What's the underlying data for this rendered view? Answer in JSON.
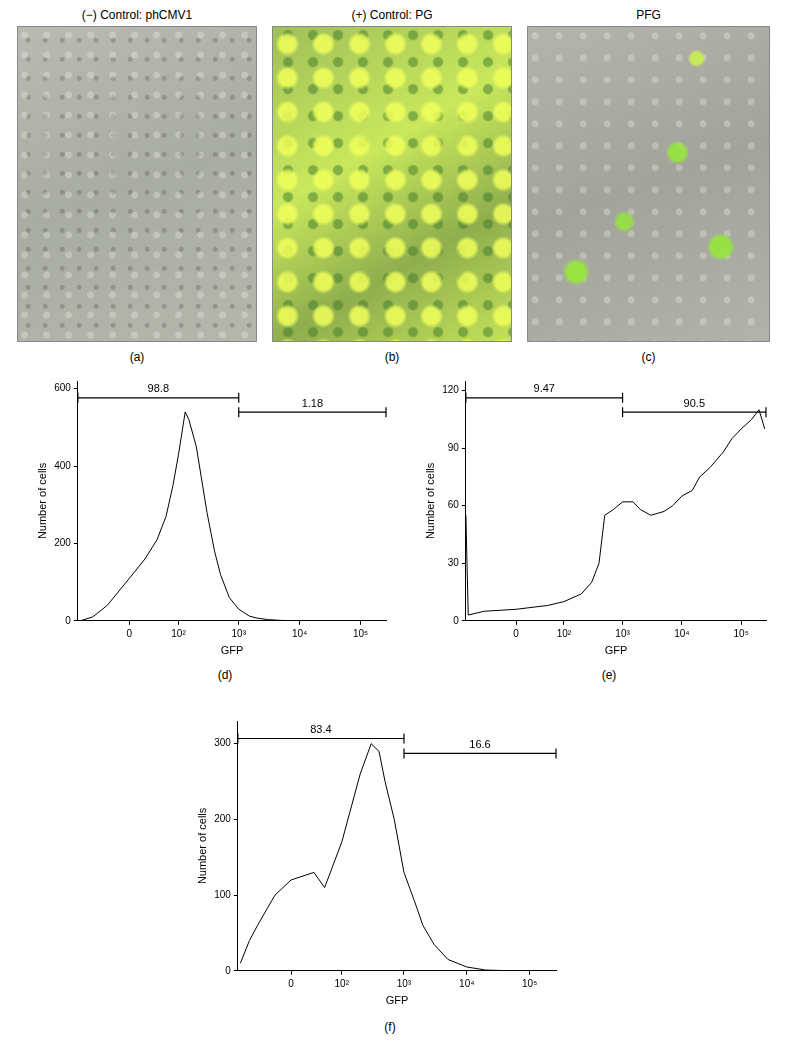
{
  "images": [
    {
      "title": "(−) Control: phCMV1",
      "label": "(a)"
    },
    {
      "title": "(+) Control: PG",
      "label": "(b)"
    },
    {
      "title": "PFG",
      "label": "(c)"
    }
  ],
  "chart_data": [
    {
      "type": "line",
      "label": "(d)",
      "xlabel": "GFP",
      "ylabel": "Number of cells",
      "color": "#000000",
      "x": [
        -100,
        -60,
        -30,
        0,
        20,
        40,
        60,
        80,
        100,
        130,
        150,
        200,
        300,
        400,
        500,
        700,
        1000,
        1500,
        2000,
        3000,
        5000,
        10000,
        50000,
        250000
      ],
      "values": [
        0,
        10,
        40,
        110,
        160,
        210,
        270,
        350,
        430,
        540,
        520,
        450,
        280,
        180,
        120,
        60,
        30,
        12,
        7,
        3,
        1,
        0,
        0,
        0
      ],
      "xlim": [
        -110,
        262144
      ],
      "xticks": [
        0,
        {
          "value": 100,
          "label": "10²"
        },
        {
          "value": 1000,
          "label": "10³"
        },
        {
          "value": 10000,
          "label": "10⁴"
        },
        {
          "value": 100000,
          "label": "10⁵"
        }
      ],
      "ylim": [
        0,
        620
      ],
      "yticks": [
        0,
        200,
        400,
        600
      ],
      "gates": [
        {
          "range": [
            -110,
            1000
          ],
          "value": 98.8
        },
        {
          "range": [
            1000,
            262144
          ],
          "value": 1.18
        }
      ]
    },
    {
      "type": "line",
      "label": "(e)",
      "xlabel": "GFP",
      "ylabel": "Number of cells",
      "color": "#000000",
      "x": [
        -110,
        -100,
        -50,
        0,
        50,
        100,
        200,
        300,
        400,
        500,
        700,
        1000,
        1500,
        2000,
        3000,
        5000,
        7000,
        10000,
        15000,
        20000,
        30000,
        50000,
        70000,
        100000,
        150000,
        200000,
        250000
      ],
      "values": [
        55,
        3,
        5,
        6,
        8,
        10,
        14,
        20,
        30,
        55,
        58,
        62,
        62,
        58,
        55,
        57,
        60,
        65,
        68,
        75,
        80,
        88,
        95,
        100,
        105,
        110,
        100
      ],
      "xlim": [
        -110,
        262144
      ],
      "xticks": [
        0,
        {
          "value": 100,
          "label": "10²"
        },
        {
          "value": 1000,
          "label": "10³"
        },
        {
          "value": 10000,
          "label": "10⁴"
        },
        {
          "value": 100000,
          "label": "10⁵"
        }
      ],
      "ylim": [
        0,
        125
      ],
      "yticks": [
        0,
        30,
        60,
        90,
        120
      ],
      "gates": [
        {
          "range": [
            -110,
            1000
          ],
          "value": 9.47
        },
        {
          "range": [
            1000,
            262144
          ],
          "value": 90.5
        }
      ]
    },
    {
      "type": "line",
      "label": "(f)",
      "xlabel": "GFP",
      "ylabel": "Number of cells",
      "color": "#000000",
      "x": [
        -100,
        -70,
        -50,
        -20,
        0,
        30,
        50,
        100,
        200,
        300,
        400,
        500,
        700,
        1000,
        1500,
        2000,
        3000,
        5000,
        10000,
        20000,
        50000,
        250000
      ],
      "values": [
        10,
        40,
        60,
        100,
        120,
        130,
        110,
        170,
        260,
        300,
        290,
        250,
        200,
        130,
        90,
        60,
        35,
        15,
        5,
        1,
        0,
        0
      ],
      "xlim": [
        -110,
        262144
      ],
      "xticks": [
        0,
        {
          "value": 100,
          "label": "10²"
        },
        {
          "value": 1000,
          "label": "10³"
        },
        {
          "value": 10000,
          "label": "10⁴"
        },
        {
          "value": 100000,
          "label": "10⁵"
        }
      ],
      "ylim": [
        0,
        330
      ],
      "yticks": [
        0,
        100,
        200,
        300
      ],
      "gates": [
        {
          "range": [
            -110,
            1000
          ],
          "value": 83.4
        },
        {
          "range": [
            1000,
            262144
          ],
          "value": 16.6
        }
      ]
    }
  ]
}
